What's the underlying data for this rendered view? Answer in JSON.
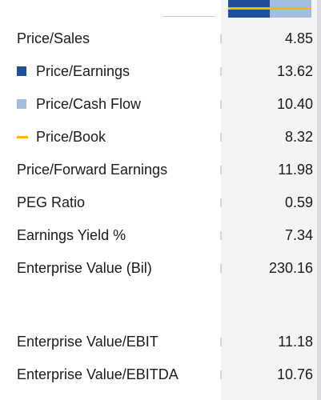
{
  "colors": {
    "price_earnings": "#1f4e9c",
    "price_cash_flow": "#a3bde0",
    "price_book": "#f5b800"
  },
  "rows": [
    {
      "label": "Price/Sales",
      "value": "4.85"
    },
    {
      "label": "Price/Earnings",
      "value": "13.62",
      "legend_icon": "dark-blue-square-icon"
    },
    {
      "label": "Price/Cash Flow",
      "value": "10.40",
      "legend_icon": "light-blue-square-icon"
    },
    {
      "label": "Price/Book",
      "value": "8.32",
      "legend_icon": "yellow-line-icon"
    },
    {
      "label": "Price/Forward Earnings",
      "value": "11.98"
    },
    {
      "label": "PEG Ratio",
      "value": "0.59"
    },
    {
      "label": "Earnings Yield %",
      "value": "7.34"
    },
    {
      "label": "Enterprise Value (Bil)",
      "value": "230.16"
    },
    {
      "label": "Enterprise Value/EBIT",
      "value": "11.18"
    },
    {
      "label": "Enterprise Value/EBITDA",
      "value": "10.76"
    }
  ]
}
